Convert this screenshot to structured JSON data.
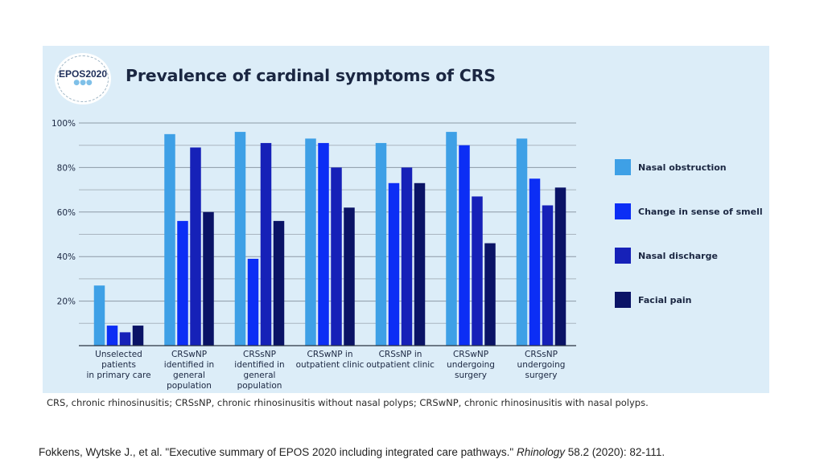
{
  "logo": {
    "text": "EPOS2020"
  },
  "chart_data": {
    "type": "bar",
    "title": "Prevalence of cardinal symptoms of CRS",
    "xlabel": "",
    "ylabel": "",
    "ylim": [
      0,
      100
    ],
    "yticks": [
      20,
      40,
      60,
      80,
      100
    ],
    "ytick_labels": [
      "20%",
      "40%",
      "60%",
      "80%",
      "100%"
    ],
    "grid": true,
    "legend_position": "right",
    "categories": [
      [
        "Unselected",
        "patients",
        "in primary care"
      ],
      [
        "CRSwNP",
        "identified in",
        "general",
        "population"
      ],
      [
        "CRSsNP",
        "identified in",
        "general",
        "population"
      ],
      [
        "CRSwNP in",
        "outpatient clinic"
      ],
      [
        "CRSsNP in",
        "outpatient clinic"
      ],
      [
        "CRSwNP",
        "undergoing",
        "surgery"
      ],
      [
        "CRSsNP",
        "undergoing",
        "surgery"
      ]
    ],
    "series": [
      {
        "name": "Nasal obstruction",
        "color": "#3ea0e6",
        "values": [
          27,
          95,
          96,
          93,
          91,
          96,
          93
        ]
      },
      {
        "name": "Change in sense of smell",
        "color": "#0c2ef5",
        "values": [
          9,
          56,
          39,
          91,
          73,
          90,
          75
        ]
      },
      {
        "name": "Nasal discharge",
        "color": "#1621b8",
        "values": [
          6,
          89,
          91,
          80,
          80,
          67,
          63
        ]
      },
      {
        "name": "Facial pain",
        "color": "#0a1366",
        "values": [
          9,
          60,
          56,
          62,
          73,
          46,
          71
        ]
      }
    ]
  },
  "footnote": "CRS, chronic rhinosinusitis; CRSsNP, chronic rhinosinusitis without nasal polyps; CRSwNP, chronic rhinosinusitis with nasal polyps.",
  "citation": {
    "before": "Fokkens, Wytske J., et al. \"Executive summary of EPOS 2020 including integrated care pathways.\" ",
    "journal": "Rhinology",
    "after": " 58.2 (2020): 82-111."
  }
}
